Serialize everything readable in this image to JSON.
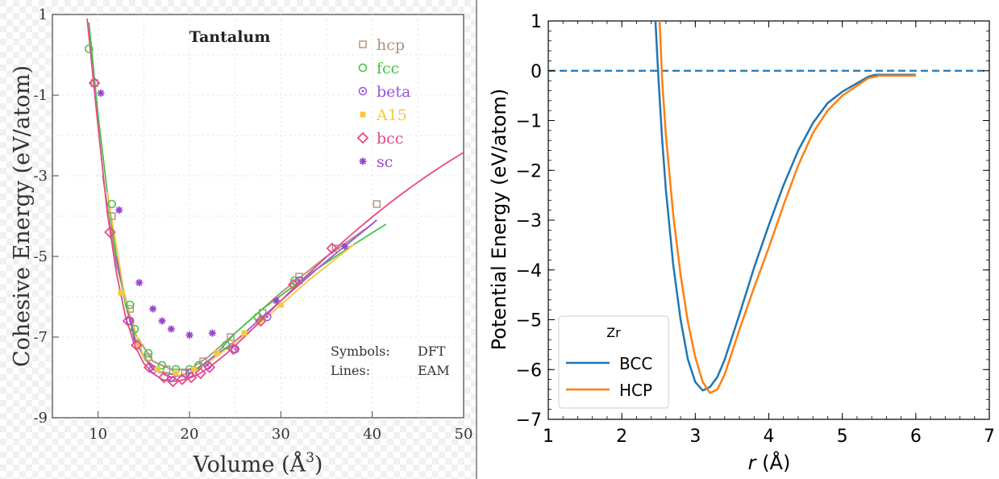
{
  "chart_data": [
    {
      "type": "scatter",
      "title": "Tantalum",
      "xlabel": "Volume (Å",
      "xlabel_sup": "3",
      "xlabel_close": ")",
      "ylabel": "Cohesive Energy (eV/atom)",
      "xlim": [
        5,
        50
      ],
      "ylim": [
        -9,
        1
      ],
      "xticks": [
        10,
        20,
        30,
        40,
        50
      ],
      "yticks": [
        1,
        -1,
        -3,
        -5,
        -7,
        -9
      ],
      "legend_position": "top-right",
      "note_symbols_label": "Symbols:",
      "note_symbols_value": "DFT",
      "note_lines_label": "Lines:",
      "note_lines_value": "EAM",
      "series": [
        {
          "name": "hcp",
          "color": "#b0907a",
          "marker": "square",
          "points": [
            [
              9.6,
              -0.7
            ],
            [
              11.5,
              -4.0
            ],
            [
              13.5,
              -6.3
            ],
            [
              15.5,
              -7.5
            ],
            [
              17.5,
              -7.8
            ],
            [
              19.5,
              -7.9
            ],
            [
              21.5,
              -7.6
            ],
            [
              24.5,
              -7.0
            ],
            [
              28,
              -6.4
            ],
            [
              32,
              -5.5
            ],
            [
              36,
              -4.8
            ],
            [
              40.5,
              -3.7
            ]
          ],
          "line": [
            [
              10.5,
              -3.0
            ],
            [
              12,
              -5.2
            ],
            [
              14,
              -6.9
            ],
            [
              16,
              -7.6
            ],
            [
              18,
              -7.8
            ],
            [
              20,
              -7.8
            ],
            [
              22,
              -7.5
            ],
            [
              25,
              -6.9
            ],
            [
              30,
              -5.9
            ],
            [
              35,
              -5.0
            ],
            [
              40,
              -4.2
            ]
          ]
        },
        {
          "name": "fcc",
          "color": "#44c444",
          "marker": "circle",
          "points": [
            [
              9.0,
              0.15
            ],
            [
              11.5,
              -3.7
            ],
            [
              13.5,
              -6.2
            ],
            [
              14.0,
              -6.8
            ],
            [
              15.5,
              -7.4
            ],
            [
              17.0,
              -7.7
            ],
            [
              18.5,
              -7.8
            ],
            [
              20.0,
              -7.8
            ],
            [
              21.0,
              -7.7
            ],
            [
              24.0,
              -7.2
            ],
            [
              27.5,
              -6.5
            ],
            [
              31.5,
              -5.6
            ]
          ],
          "line": [
            [
              9.0,
              0.8
            ],
            [
              10,
              -1.5
            ],
            [
              11,
              -3.4
            ],
            [
              12,
              -5.0
            ],
            [
              13,
              -6.2
            ],
            [
              14,
              -7.0
            ],
            [
              15,
              -7.5
            ],
            [
              16,
              -7.8
            ],
            [
              17.5,
              -7.9
            ],
            [
              19,
              -7.95
            ],
            [
              21,
              -7.8
            ],
            [
              23,
              -7.4
            ],
            [
              25,
              -6.9
            ],
            [
              28,
              -6.3
            ],
            [
              31,
              -5.8
            ],
            [
              34,
              -5.3
            ],
            [
              38,
              -4.7
            ],
            [
              41.5,
              -4.2
            ]
          ]
        },
        {
          "name": "beta",
          "color": "#9955dd",
          "marker": "dotcircle",
          "points": [
            [
              13.5,
              -6.6
            ],
            [
              16,
              -7.8
            ],
            [
              18,
              -8.0
            ],
            [
              20,
              -7.9
            ],
            [
              22,
              -7.7
            ],
            [
              25,
              -7.3
            ],
            [
              28.5,
              -6.5
            ],
            [
              32,
              -5.6
            ]
          ],
          "line": [
            [
              12,
              -5.0
            ],
            [
              14,
              -7.1
            ],
            [
              16,
              -7.8
            ],
            [
              18,
              -8.0
            ],
            [
              20,
              -7.9
            ],
            [
              22,
              -7.6
            ],
            [
              25,
              -7.1
            ],
            [
              29,
              -6.3
            ],
            [
              34,
              -5.3
            ],
            [
              40.5,
              -4.1
            ]
          ]
        },
        {
          "name": "A15",
          "color": "#f5c842",
          "marker": "smallsquare",
          "points": [
            [
              12.5,
              -5.9
            ],
            [
              14.5,
              -7.2
            ],
            [
              16.5,
              -7.8
            ],
            [
              18.5,
              -7.9
            ],
            [
              20.5,
              -7.8
            ],
            [
              23,
              -7.4
            ],
            [
              26,
              -6.9
            ],
            [
              30,
              -6.2
            ]
          ],
          "line": [
            [
              11,
              -3.4
            ],
            [
              13,
              -6.1
            ],
            [
              15,
              -7.5
            ],
            [
              17,
              -7.9
            ],
            [
              19,
              -7.95
            ],
            [
              21,
              -7.8
            ],
            [
              24,
              -7.3
            ],
            [
              28,
              -6.6
            ],
            [
              33,
              -5.6
            ],
            [
              38,
              -4.7
            ]
          ]
        },
        {
          "name": "bcc",
          "color": "#e8488a",
          "marker": "diamond",
          "points": [
            [
              9.6,
              -0.7
            ],
            [
              11.3,
              -4.4
            ],
            [
              13.3,
              -6.6
            ],
            [
              14.2,
              -7.2
            ],
            [
              15.6,
              -7.75
            ],
            [
              17.2,
              -8.0
            ],
            [
              18.2,
              -8.1
            ],
            [
              19.2,
              -8.05
            ],
            [
              20.2,
              -8.0
            ],
            [
              21.2,
              -7.9
            ],
            [
              22.2,
              -7.75
            ],
            [
              24.8,
              -7.3
            ],
            [
              27.8,
              -6.6
            ],
            [
              31.4,
              -5.7
            ],
            [
              35.6,
              -4.8
            ]
          ],
          "line": [
            [
              8.8,
              0.9
            ],
            [
              10,
              -1.8
            ],
            [
              11,
              -3.9
            ],
            [
              12,
              -5.4
            ],
            [
              13,
              -6.5
            ],
            [
              14,
              -7.2
            ],
            [
              15,
              -7.65
            ],
            [
              16,
              -7.9
            ],
            [
              17,
              -8.05
            ],
            [
              18,
              -8.1
            ],
            [
              19,
              -8.08
            ],
            [
              20,
              -8.02
            ],
            [
              21,
              -7.92
            ],
            [
              22,
              -7.78
            ],
            [
              24,
              -7.42
            ],
            [
              26,
              -7.0
            ],
            [
              28,
              -6.55
            ],
            [
              30,
              -6.1
            ],
            [
              32,
              -5.65
            ],
            [
              34,
              -5.22
            ],
            [
              36,
              -4.8
            ],
            [
              38,
              -4.4
            ],
            [
              40,
              -4.02
            ],
            [
              42,
              -3.66
            ],
            [
              44,
              -3.32
            ],
            [
              46,
              -3.0
            ],
            [
              48,
              -2.7
            ],
            [
              50,
              -2.42
            ]
          ]
        },
        {
          "name": "sc",
          "color": "#9944cc",
          "marker": "star",
          "points": [
            [
              10.3,
              -0.95
            ],
            [
              12.3,
              -3.85
            ],
            [
              14.5,
              -5.65
            ],
            [
              16,
              -6.3
            ],
            [
              17.0,
              -6.6
            ],
            [
              18.0,
              -6.8
            ],
            [
              20.0,
              -6.95
            ],
            [
              22.5,
              -6.9
            ],
            [
              29.5,
              -6.1
            ],
            [
              37,
              -4.75
            ]
          ]
        }
      ]
    },
    {
      "type": "line",
      "title": "",
      "xlabel_italic": "r",
      "xlabel_rest": " (Å)",
      "ylabel": "Potential Energy (eV/atom)",
      "xlim": [
        1,
        7
      ],
      "ylim": [
        -7,
        1
      ],
      "xticks": [
        1,
        2,
        3,
        4,
        5,
        6,
        7
      ],
      "yticks": [
        1,
        0,
        -1,
        -2,
        -3,
        -4,
        -5,
        -6,
        -7
      ],
      "ytick_labels": [
        "1",
        "0",
        "−1",
        "−2",
        "−3",
        "−4",
        "−5",
        "−6",
        "−7"
      ],
      "hline": {
        "y": 0,
        "color": "#1f77b4",
        "style": "dashed"
      },
      "legend_title": "Zr",
      "legend_position": "bottom-left",
      "series": [
        {
          "name": "BCC",
          "color": "#1f77b4",
          "points": [
            [
              2.44,
              1.5
            ],
            [
              2.5,
              -0.2
            ],
            [
              2.55,
              -1.4
            ],
            [
              2.6,
              -2.4
            ],
            [
              2.7,
              -3.9
            ],
            [
              2.8,
              -5.0
            ],
            [
              2.9,
              -5.8
            ],
            [
              3.0,
              -6.25
            ],
            [
              3.1,
              -6.42
            ],
            [
              3.2,
              -6.35
            ],
            [
              3.3,
              -6.15
            ],
            [
              3.4,
              -5.8
            ],
            [
              3.6,
              -4.9
            ],
            [
              3.8,
              -3.95
            ],
            [
              4.0,
              -3.1
            ],
            [
              4.2,
              -2.3
            ],
            [
              4.4,
              -1.6
            ],
            [
              4.6,
              -1.05
            ],
            [
              4.8,
              -0.65
            ],
            [
              5.0,
              -0.42
            ],
            [
              5.2,
              -0.25
            ],
            [
              5.35,
              -0.12
            ],
            [
              5.45,
              -0.08
            ],
            [
              6.0,
              -0.08
            ]
          ]
        },
        {
          "name": "HCP",
          "color": "#ff7f0e",
          "points": [
            [
              2.5,
              1.5
            ],
            [
              2.55,
              -0.2
            ],
            [
              2.6,
              -1.3
            ],
            [
              2.7,
              -2.9
            ],
            [
              2.8,
              -4.1
            ],
            [
              2.9,
              -5.05
            ],
            [
              3.0,
              -5.75
            ],
            [
              3.1,
              -6.25
            ],
            [
              3.2,
              -6.47
            ],
            [
              3.3,
              -6.4
            ],
            [
              3.4,
              -6.1
            ],
            [
              3.6,
              -5.2
            ],
            [
              3.8,
              -4.35
            ],
            [
              4.0,
              -3.55
            ],
            [
              4.2,
              -2.7
            ],
            [
              4.4,
              -1.9
            ],
            [
              4.6,
              -1.25
            ],
            [
              4.8,
              -0.8
            ],
            [
              5.0,
              -0.5
            ],
            [
              5.2,
              -0.3
            ],
            [
              5.35,
              -0.15
            ],
            [
              5.5,
              -0.1
            ],
            [
              6.0,
              -0.1
            ]
          ]
        }
      ]
    }
  ]
}
